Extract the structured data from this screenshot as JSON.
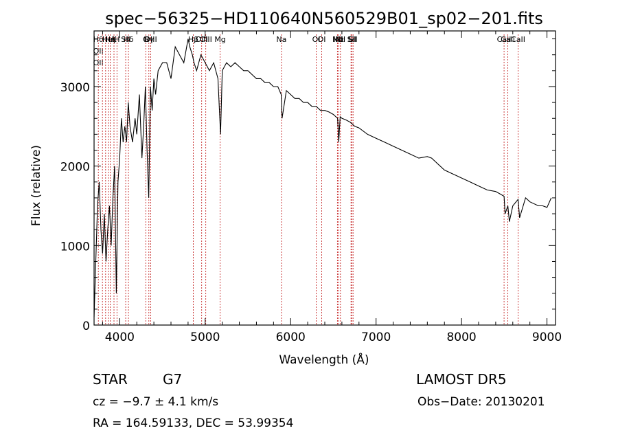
{
  "chart_data": {
    "type": "line",
    "title": "spec−56325−HD110640N560529B01_sp02−201.fits",
    "xlabel": "Wavelength (Å)",
    "ylabel": "Flux (relative)",
    "xlim": [
      3700,
      9100
    ],
    "ylim": [
      0,
      3700
    ],
    "x_ticks": [
      4000,
      5000,
      6000,
      7000,
      8000,
      9000
    ],
    "y_ticks": [
      0,
      1000,
      2000,
      3000
    ],
    "series": [
      {
        "x": [
          3700,
          3720,
          3740,
          3760,
          3780,
          3800,
          3820,
          3840,
          3860,
          3880,
          3900,
          3920,
          3940,
          3960,
          3980,
          4000,
          4020,
          4040,
          4060,
          4080,
          4100,
          4120,
          4150,
          4180,
          4200,
          4230,
          4260,
          4280,
          4300,
          4320,
          4340,
          4360,
          4380,
          4400,
          4420,
          4450,
          4500,
          4550,
          4600,
          4650,
          4700,
          4750,
          4800,
          4820,
          4850,
          4870,
          4900,
          4950,
          5000,
          5050,
          5100,
          5150,
          5180,
          5200,
          5250,
          5300,
          5350,
          5400,
          5450,
          5500,
          5550,
          5600,
          5650,
          5700,
          5750,
          5800,
          5850,
          5890,
          5900,
          5950,
          6000,
          6050,
          6100,
          6150,
          6200,
          6250,
          6300,
          6350,
          6400,
          6450,
          6500,
          6550,
          6563,
          6580,
          6600,
          6650,
          6700,
          6750,
          6800,
          6900,
          7000,
          7100,
          7200,
          7300,
          7400,
          7500,
          7600,
          7650,
          7700,
          7800,
          7900,
          8000,
          8100,
          8200,
          8300,
          8400,
          8450,
          8498,
          8510,
          8542,
          8560,
          8600,
          8662,
          8680,
          8750,
          8800,
          8900,
          8950,
          9000,
          9050
        ],
        "y": [
          100,
          800,
          1500,
          1800,
          1200,
          900,
          1400,
          800,
          1200,
          1500,
          1000,
          1600,
          2000,
          400,
          1800,
          2100,
          2600,
          2300,
          2500,
          2300,
          2800,
          2500,
          2300,
          2600,
          2400,
          2900,
          2100,
          2500,
          3000,
          2200,
          1600,
          3000,
          2700,
          3100,
          2900,
          3200,
          3300,
          3300,
          3100,
          3500,
          3400,
          3300,
          3600,
          3500,
          3400,
          3300,
          3200,
          3400,
          3300,
          3200,
          3300,
          3100,
          2400,
          3200,
          3300,
          3250,
          3300,
          3250,
          3200,
          3200,
          3150,
          3100,
          3100,
          3050,
          3050,
          3000,
          3000,
          2900,
          2600,
          2950,
          2900,
          2850,
          2850,
          2800,
          2800,
          2750,
          2750,
          2700,
          2700,
          2680,
          2650,
          2600,
          2300,
          2620,
          2600,
          2580,
          2550,
          2500,
          2480,
          2400,
          2350,
          2300,
          2250,
          2200,
          2150,
          2100,
          2120,
          2100,
          2050,
          1950,
          1900,
          1850,
          1800,
          1750,
          1700,
          1680,
          1650,
          1620,
          1400,
          1500,
          1300,
          1500,
          1580,
          1350,
          1600,
          1550,
          1500,
          1500,
          1480,
          1600
        ]
      }
    ],
    "lines": [
      {
        "x": 3750,
        "labels": [
          "Hθ",
          "OII",
          "OII"
        ]
      },
      {
        "x": 3798,
        "labels": []
      },
      {
        "x": 3835,
        "labels": []
      },
      {
        "x": 3869,
        "labels": [
          "HeI"
        ]
      },
      {
        "x": 3889,
        "labels": [
          "Hη"
        ]
      },
      {
        "x": 3933,
        "labels": [
          "K"
        ]
      },
      {
        "x": 3968,
        "labels": [
          "H"
        ]
      },
      {
        "x": 4070,
        "labels": [
          "SII"
        ]
      },
      {
        "x": 4102,
        "labels": [
          "Hδ"
        ]
      },
      {
        "x": 4305,
        "labels": [
          "G"
        ]
      },
      {
        "x": 4341,
        "labels": [
          "Hγ"
        ]
      },
      {
        "x": 4363,
        "labels": [
          "OIII"
        ]
      },
      {
        "x": 4861,
        "labels": [
          "Hβ"
        ]
      },
      {
        "x": 4959,
        "labels": [
          "OIII"
        ]
      },
      {
        "x": 5007,
        "labels": [
          "OIII"
        ]
      },
      {
        "x": 5175,
        "labels": [
          "Mg"
        ]
      },
      {
        "x": 5893,
        "labels": [
          "Na"
        ]
      },
      {
        "x": 6300,
        "labels": [
          "OI"
        ]
      },
      {
        "x": 6364,
        "labels": [
          "OI"
        ]
      },
      {
        "x": 6548,
        "labels": [
          "NII"
        ]
      },
      {
        "x": 6563,
        "labels": [
          "Hα"
        ]
      },
      {
        "x": 6583,
        "labels": [
          "NII"
        ]
      },
      {
        "x": 6707,
        "labels": [
          "Li"
        ]
      },
      {
        "x": 6716,
        "labels": [
          "SII"
        ]
      },
      {
        "x": 6731,
        "labels": [
          "SII"
        ]
      },
      {
        "x": 8498,
        "labels": [
          "CaII"
        ]
      },
      {
        "x": 8542,
        "labels": [
          "CaII"
        ]
      },
      {
        "x": 8662,
        "labels": [
          "CaII"
        ]
      }
    ]
  },
  "info": {
    "object_class": "STAR",
    "subclass": "G7",
    "survey": "LAMOST DR5",
    "cz": "cz = −9.7 ± 4.1 km/s",
    "obs_date": "Obs−Date: 20130201",
    "coords": "RA = 164.59133, DEC =  53.99354"
  },
  "colors": {
    "spectrum": "#000000",
    "line_marker": "#c62828"
  }
}
